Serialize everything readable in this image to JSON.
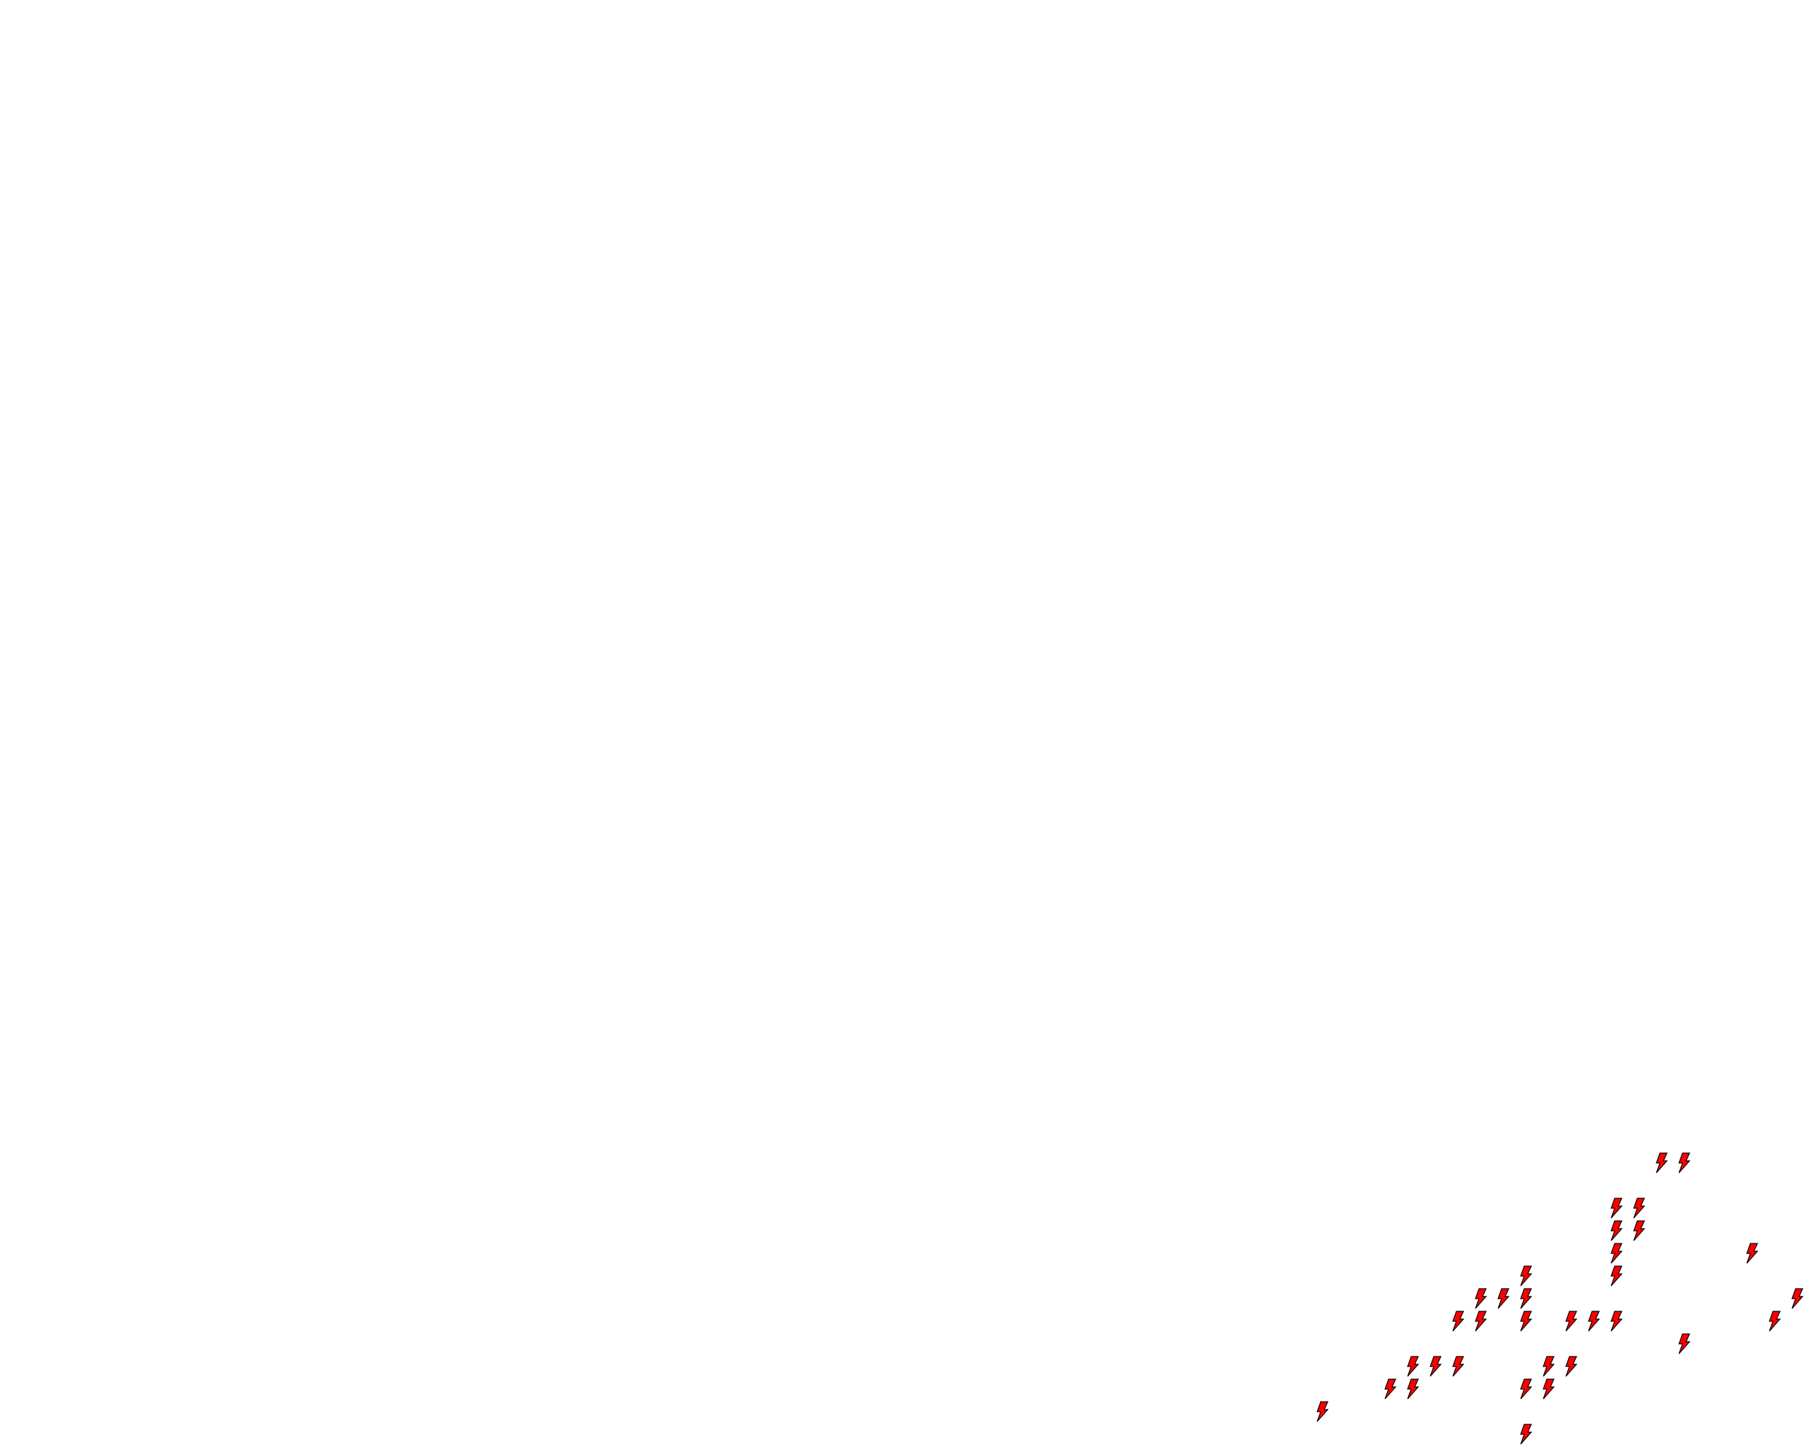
{
  "map": {
    "background_color": "#ffffff",
    "marker": {
      "icon": "lightning-bolt-icon",
      "fill_color": "#ff0000",
      "stroke_color": "#000000",
      "count": 33
    }
  }
}
